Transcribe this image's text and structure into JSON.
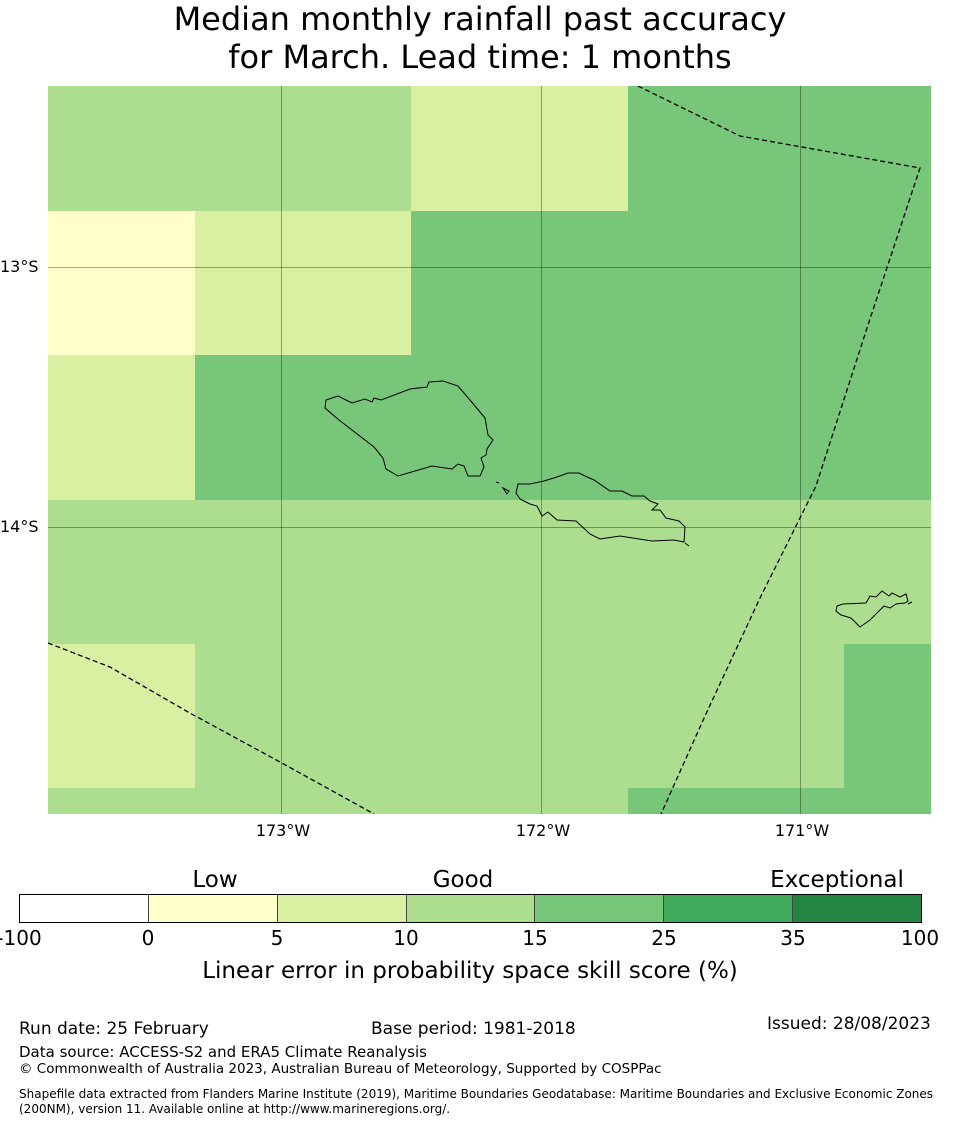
{
  "title": {
    "line1": "Median monthly rainfall past accuracy",
    "line2": "for March. Lead time: 1 months"
  },
  "colors": {
    "class_0_5": "#ffffcc",
    "class_5_10": "#d9f0a3",
    "class_10_15": "#addd8e",
    "class_15_25": "#78c679",
    "class_25_35": "#41ab5d",
    "class_35_100": "#238443",
    "class_below_0": "#ffffff",
    "coastline": "#000000",
    "boundary": "#000000"
  },
  "map": {
    "region": "Samoa",
    "lat_labels": [
      "13°S",
      "14°S"
    ],
    "lon_labels": [
      "173°W",
      "172°W",
      "171°W"
    ],
    "skill_grid": [
      [
        "class_10_15",
        "class_10_15",
        "class_5_10",
        "class_15_25",
        "class_15_25"
      ],
      [
        "class_0_5",
        "class_5_10",
        "class_15_25",
        "class_15_25",
        "class_15_25"
      ],
      [
        "class_5_10",
        "class_15_25",
        "class_15_25",
        "class_15_25",
        "class_15_25"
      ],
      [
        "class_10_15",
        "class_10_15",
        "class_10_15",
        "class_10_15",
        "class_10_15"
      ],
      [
        "class_5_10",
        "class_10_15",
        "class_10_15",
        "class_10_15",
        "class_15_25"
      ],
      [
        "class_10_15",
        "class_10_15",
        "class_10_15",
        "class_15_25",
        "class_15_25"
      ]
    ],
    "layers": [
      "skill-cells",
      "graticule",
      "coastlines",
      "maritime-boundaries"
    ]
  },
  "colorbar": {
    "categories": [
      "Low",
      "Good",
      "Exceptional"
    ],
    "ticks": [
      "-100",
      "0",
      "5",
      "10",
      "15",
      "25",
      "35",
      "100"
    ],
    "segment_colors": [
      "class_below_0",
      "class_0_5",
      "class_5_10",
      "class_10_15",
      "class_15_25",
      "class_25_35",
      "class_35_100"
    ],
    "label": "Linear error in probability space skill score (%)"
  },
  "footer": {
    "run_date": "Run date: 25 February",
    "base_period": "Base period: 1981-2018",
    "issued": "Issued: 28/08/2023",
    "data_source": "Data source: ACCESS-S2 and ERA5 Climate Reanalysis",
    "copyright": "© Commonwealth of Australia 2023, Australian Bureau of Meteorology, Supported by COSPPac",
    "shapefile_line1": "Shapefile data extracted from Flanders Marine Institute (2019), Maritime Boundaries Geodatabase: Maritime Boundaries and Exclusive Economic Zones",
    "shapefile_line2": "(200NM), version 11. Available online at http://www.marineregions.org/."
  }
}
